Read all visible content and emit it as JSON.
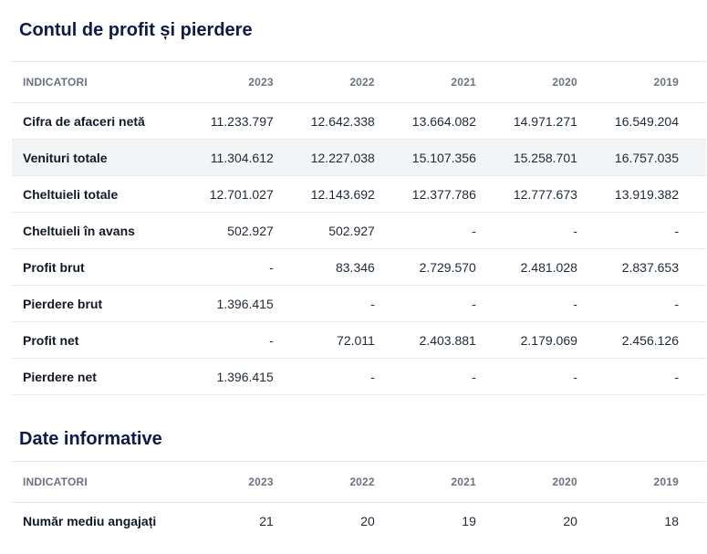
{
  "profit_loss": {
    "title": "Contul de profit și pierdere",
    "headers": [
      "INDICATORI",
      "2023",
      "2022",
      "2021",
      "2020",
      "2019"
    ],
    "rows": [
      {
        "label": "Cifra de afaceri netă",
        "values": [
          "11.233.797",
          "12.642.338",
          "13.664.082",
          "14.971.271",
          "16.549.204"
        ]
      },
      {
        "label": "Venituri totale",
        "values": [
          "11.304.612",
          "12.227.038",
          "15.107.356",
          "15.258.701",
          "16.757.035"
        ]
      },
      {
        "label": "Cheltuieli totale",
        "values": [
          "12.701.027",
          "12.143.692",
          "12.377.786",
          "12.777.673",
          "13.919.382"
        ]
      },
      {
        "label": "Cheltuieli în avans",
        "values": [
          "502.927",
          "502.927",
          "-",
          "-",
          "-"
        ]
      },
      {
        "label": "Profit brut",
        "values": [
          "-",
          "83.346",
          "2.729.570",
          "2.481.028",
          "2.837.653"
        ]
      },
      {
        "label": "Pierdere brut",
        "values": [
          "1.396.415",
          "-",
          "-",
          "-",
          "-"
        ]
      },
      {
        "label": "Profit net",
        "values": [
          "-",
          "72.011",
          "2.403.881",
          "2.179.069",
          "2.456.126"
        ]
      },
      {
        "label": "Pierdere net",
        "values": [
          "1.396.415",
          "-",
          "-",
          "-",
          "-"
        ]
      }
    ]
  },
  "info": {
    "title": "Date informative",
    "headers": [
      "INDICATORI",
      "2023",
      "2022",
      "2021",
      "2020",
      "2019"
    ],
    "rows": [
      {
        "label": "Număr mediu angajați",
        "values": [
          "21",
          "20",
          "19",
          "20",
          "18"
        ]
      }
    ]
  }
}
